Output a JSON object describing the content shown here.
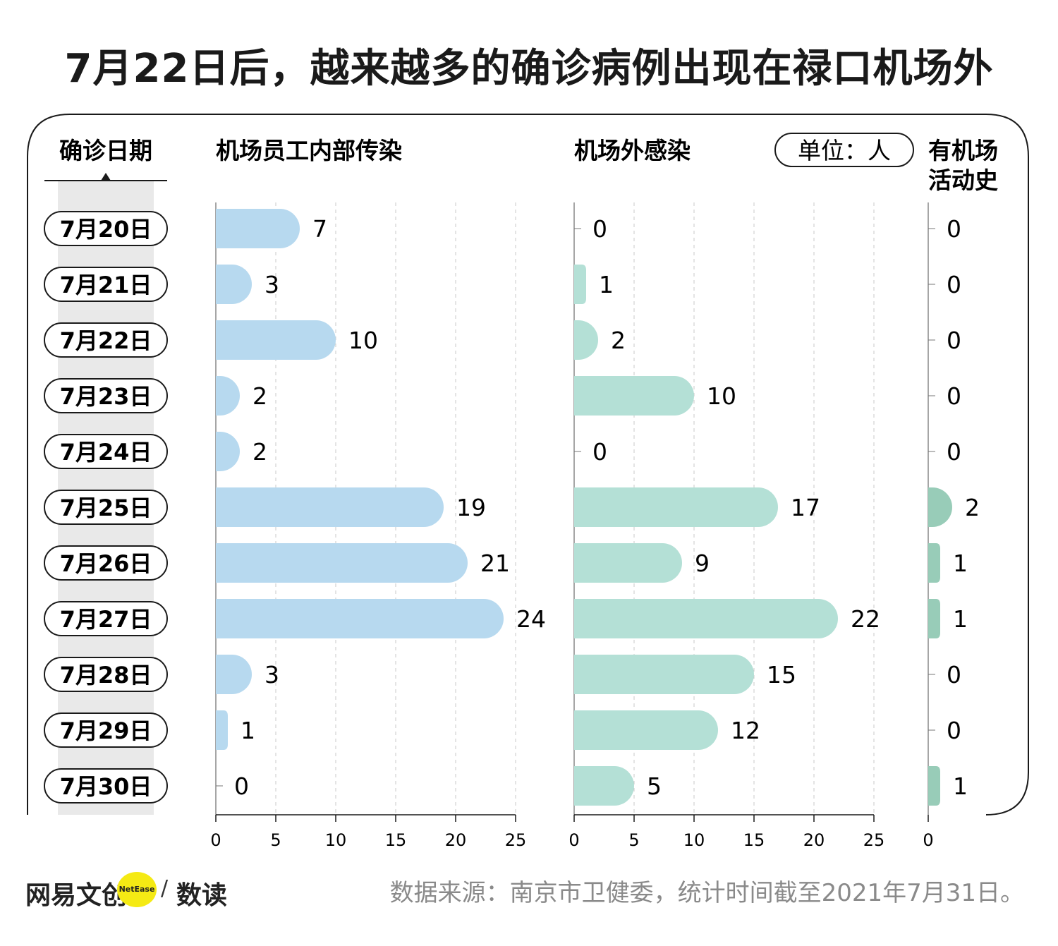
{
  "title": "7月22日后，越来越多的确诊病例出现在禄口机场外",
  "unit_label": "单位：人",
  "footer": {
    "brand_left": "网易文创",
    "brand_badge": "NetEase",
    "brand_right": "数读",
    "source": "数据来源：南京市卫健委，统计时间截至2021年7月31日。"
  },
  "colors": {
    "airport_staff": "#b7d9ef",
    "outside_airport": "#b4e0d6",
    "airport_history": "#98ccb8",
    "date_column_bg": "#e9e9e9"
  },
  "chart_data": {
    "type": "bar",
    "orientation": "horizontal",
    "category_label": "确诊日期",
    "categories": [
      "7月20日",
      "7月21日",
      "7月22日",
      "7月23日",
      "7月24日",
      "7月25日",
      "7月26日",
      "7月27日",
      "7月28日",
      "7月29日",
      "7月30日"
    ],
    "xlim": [
      0,
      30
    ],
    "x_ticks": [
      0,
      5,
      10,
      15,
      20,
      25
    ],
    "grid": "dashed-vertical",
    "series": [
      {
        "name": "机场员工内部传染",
        "values": [
          7,
          3,
          10,
          2,
          2,
          19,
          21,
          24,
          3,
          1,
          0
        ]
      },
      {
        "name": "机场外感染",
        "values": [
          0,
          1,
          2,
          10,
          0,
          17,
          9,
          22,
          15,
          12,
          5
        ]
      },
      {
        "name": "有机场活动史",
        "values": [
          0,
          0,
          0,
          0,
          0,
          2,
          1,
          1,
          0,
          0,
          1
        ]
      }
    ],
    "third_panel_ticks": [
      0
    ]
  }
}
